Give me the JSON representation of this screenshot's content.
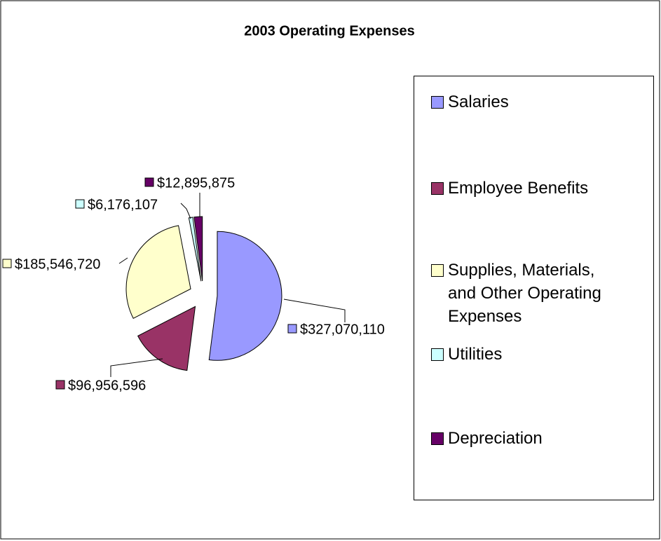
{
  "chart_data": {
    "type": "pie",
    "title": "2003 Operating Expenses",
    "categories": [
      "Salaries",
      "Employee Benefits",
      "Supplies, Materials, and Other Operating Expenses",
      "Utilities",
      "Depreciation"
    ],
    "values": [
      327070110,
      96956596,
      185546720,
      6176107,
      12895875
    ],
    "value_labels": [
      "$327,070,110",
      "$96,956,596",
      "$185,546,720",
      "$6,176,107",
      "$12,895,875"
    ],
    "colors": [
      "#9999ff",
      "#993366",
      "#ffffcc",
      "#ccffff",
      "#660066"
    ],
    "legend": "right"
  }
}
